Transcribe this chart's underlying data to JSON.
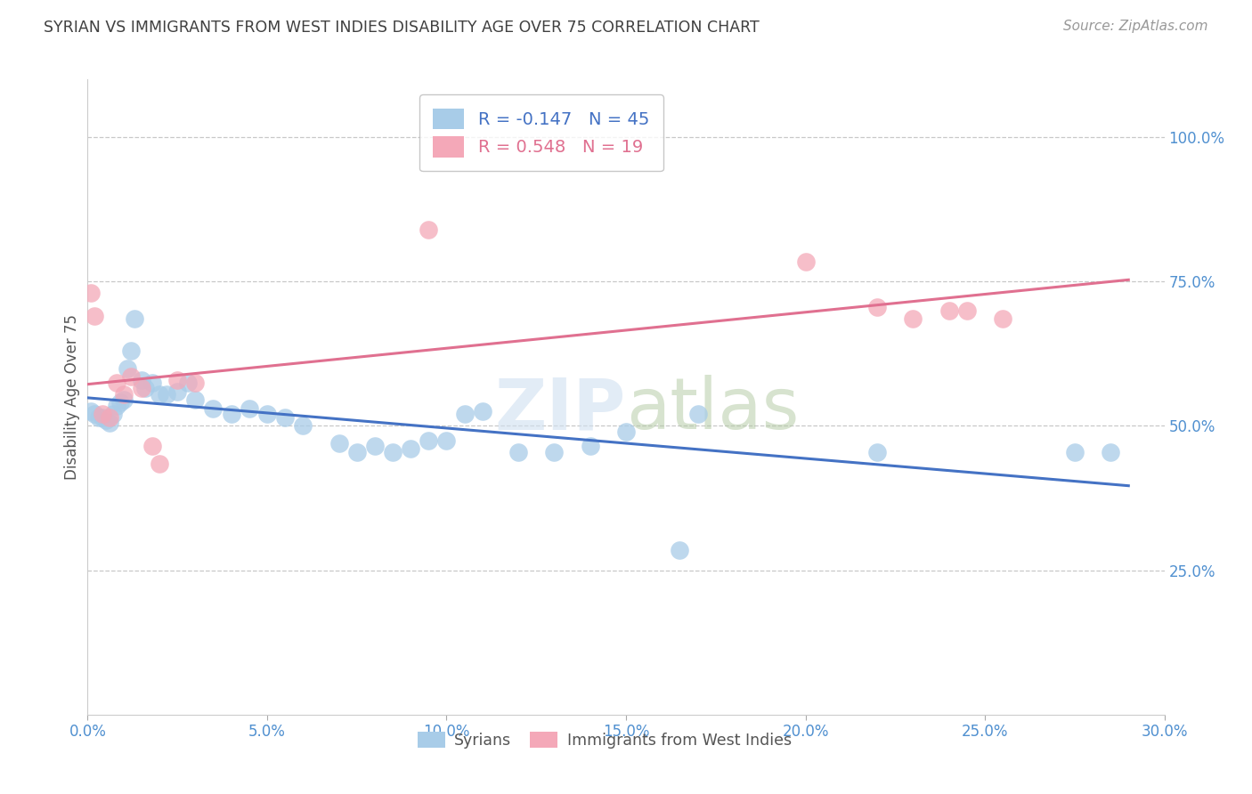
{
  "title": "SYRIAN VS IMMIGRANTS FROM WEST INDIES DISABILITY AGE OVER 75 CORRELATION CHART",
  "source": "Source: ZipAtlas.com",
  "ylabel": "Disability Age Over 75",
  "xlim": [
    0.0,
    30.0
  ],
  "ylim": [
    0.0,
    1.1
  ],
  "syrians_x": [
    0.1,
    0.2,
    0.3,
    0.4,
    0.5,
    0.6,
    0.7,
    0.8,
    0.9,
    1.0,
    1.1,
    1.2,
    1.3,
    1.5,
    1.6,
    1.8,
    2.0,
    2.2,
    2.5,
    2.8,
    3.0,
    3.5,
    4.0,
    4.5,
    5.0,
    5.5,
    6.0,
    7.0,
    7.5,
    8.0,
    8.5,
    9.0,
    9.5,
    10.0,
    10.5,
    11.0,
    12.0,
    13.0,
    14.0,
    15.0,
    16.5,
    17.0,
    22.0,
    27.5,
    28.5
  ],
  "syrians_y": [
    0.525,
    0.52,
    0.515,
    0.515,
    0.51,
    0.505,
    0.52,
    0.535,
    0.54,
    0.545,
    0.6,
    0.63,
    0.685,
    0.58,
    0.565,
    0.575,
    0.555,
    0.555,
    0.56,
    0.575,
    0.545,
    0.53,
    0.52,
    0.53,
    0.52,
    0.515,
    0.5,
    0.47,
    0.455,
    0.465,
    0.455,
    0.46,
    0.475,
    0.475,
    0.52,
    0.525,
    0.455,
    0.455,
    0.465,
    0.49,
    0.285,
    0.52,
    0.455,
    0.455,
    0.455
  ],
  "westindies_x": [
    0.1,
    0.2,
    0.4,
    0.6,
    0.8,
    1.0,
    1.2,
    1.5,
    1.8,
    2.0,
    2.5,
    3.0,
    9.5,
    20.0,
    22.0,
    23.0,
    24.0,
    24.5,
    25.5
  ],
  "westindies_y": [
    0.73,
    0.69,
    0.52,
    0.515,
    0.575,
    0.555,
    0.585,
    0.565,
    0.465,
    0.435,
    0.58,
    0.575,
    0.84,
    0.785,
    0.705,
    0.685,
    0.7,
    0.7,
    0.685
  ],
  "syrians_R": -0.147,
  "syrians_N": 45,
  "westindies_R": 0.548,
  "westindies_N": 19,
  "blue_color": "#a8cce8",
  "pink_color": "#f4a8b8",
  "blue_line_color": "#4472c4",
  "pink_line_color": "#e07090",
  "grid_color": "#c8c8c8",
  "title_color": "#404040",
  "right_axis_color": "#5090d0",
  "bottom_axis_color": "#5090d0",
  "yticks": [
    0.25,
    0.5,
    0.75,
    1.0
  ],
  "ytick_labels": [
    "25.0%",
    "50.0%",
    "75.0%",
    "100.0%"
  ],
  "xticks": [
    0,
    5,
    10,
    15,
    20,
    25,
    30
  ],
  "xtick_labels": [
    "0.0%",
    "5.0%",
    "10.0%",
    "15.0%",
    "20.0%",
    "25.0%",
    "30.0%"
  ]
}
